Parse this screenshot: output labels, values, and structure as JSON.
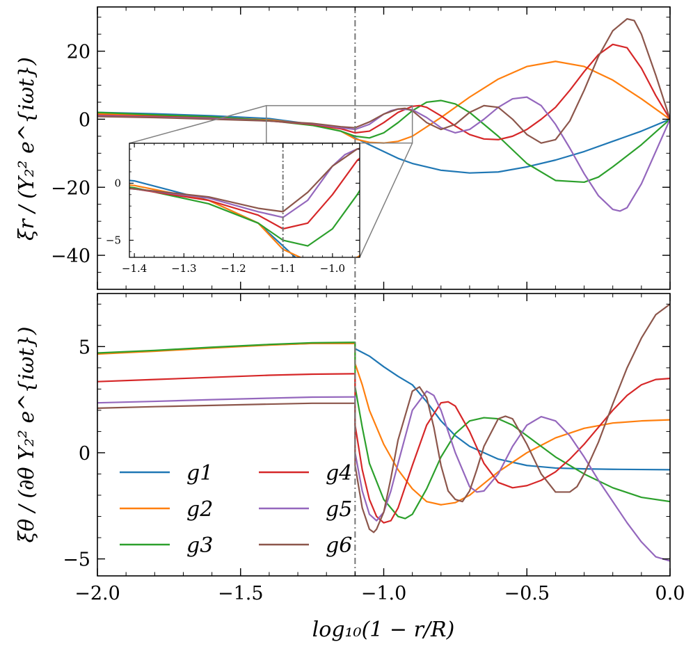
{
  "chart_data": [
    {
      "type": "line",
      "panel": "top",
      "ylabel": "ξr / (Y₂² e^{iωt})",
      "xlim": [
        -2.0,
        0.0
      ],
      "ylim": [
        -50,
        33
      ],
      "yticks": [
        20,
        0,
        -20,
        -40
      ],
      "ytick_labels": [
        "20",
        "0",
        "−20",
        "−40"
      ],
      "vline_x": -1.1,
      "series": [
        {
          "name": "g1",
          "x": [
            -2.0,
            -1.8,
            -1.6,
            -1.4,
            -1.25,
            -1.15,
            -1.1,
            -1.05,
            -1.0,
            -0.95,
            -0.9,
            -0.8,
            -0.7,
            -0.6,
            -0.5,
            -0.4,
            -0.3,
            -0.2,
            -0.1,
            0.0
          ],
          "y": [
            2.0,
            1.6,
            1.0,
            0.2,
            -1.5,
            -3.5,
            -5.5,
            -7.5,
            -9.5,
            -11.5,
            -13.0,
            -15.0,
            -15.8,
            -15.5,
            -14.0,
            -12.0,
            -9.5,
            -6.5,
            -3.5,
            0.0
          ]
        },
        {
          "name": "g2",
          "x": [
            -2.0,
            -1.8,
            -1.6,
            -1.4,
            -1.25,
            -1.15,
            -1.1,
            -1.05,
            -1.0,
            -0.95,
            -0.9,
            -0.8,
            -0.7,
            -0.6,
            -0.5,
            -0.4,
            -0.3,
            -0.2,
            -0.1,
            0.0
          ],
          "y": [
            1.6,
            1.2,
            0.6,
            -0.2,
            -1.5,
            -3.5,
            -5.8,
            -6.8,
            -7.0,
            -6.5,
            -5.0,
            0.5,
            6.5,
            11.8,
            15.5,
            17.0,
            15.5,
            11.5,
            6.0,
            0.0
          ]
        },
        {
          "name": "g3",
          "x": [
            -2.0,
            -1.8,
            -1.6,
            -1.4,
            -1.25,
            -1.15,
            -1.1,
            -1.05,
            -1.0,
            -0.95,
            -0.9,
            -0.85,
            -0.8,
            -0.75,
            -0.7,
            -0.6,
            -0.5,
            -0.4,
            -0.3,
            -0.25,
            -0.2,
            -0.1,
            0.0
          ],
          "y": [
            2.0,
            1.3,
            0.7,
            -0.4,
            -1.8,
            -3.5,
            -5.0,
            -5.5,
            -4.0,
            -1.0,
            2.5,
            5.0,
            5.5,
            4.5,
            2.0,
            -5.0,
            -13.0,
            -18.0,
            -18.5,
            -17.0,
            -14.0,
            -7.5,
            0.0
          ]
        },
        {
          "name": "g4",
          "x": [
            -2.0,
            -1.8,
            -1.6,
            -1.4,
            -1.25,
            -1.15,
            -1.1,
            -1.05,
            -1.0,
            -0.95,
            -0.9,
            -0.875,
            -0.85,
            -0.8,
            -0.75,
            -0.7,
            -0.65,
            -0.6,
            -0.55,
            -0.5,
            -0.45,
            -0.4,
            -0.35,
            -0.3,
            -0.25,
            -0.2,
            -0.15,
            -0.1,
            -0.05,
            0.0
          ],
          "y": [
            1.2,
            0.8,
            0.3,
            -0.5,
            -1.5,
            -2.8,
            -4.0,
            -3.5,
            -1.0,
            2.0,
            3.8,
            4.0,
            3.5,
            1.0,
            -2.0,
            -4.5,
            -5.8,
            -6.0,
            -5.0,
            -3.0,
            0.0,
            3.5,
            8.5,
            14.0,
            19.0,
            22.0,
            21.0,
            15.0,
            7.0,
            0.0
          ]
        },
        {
          "name": "g5",
          "x": [
            -2.0,
            -1.8,
            -1.6,
            -1.4,
            -1.25,
            -1.15,
            -1.1,
            -1.05,
            -1.0,
            -0.975,
            -0.95,
            -0.9,
            -0.85,
            -0.8,
            -0.75,
            -0.7,
            -0.65,
            -0.6,
            -0.55,
            -0.5,
            -0.45,
            -0.4,
            -0.35,
            -0.3,
            -0.25,
            -0.2,
            -0.175,
            -0.15,
            -0.1,
            -0.05,
            0.0
          ],
          "y": [
            1.0,
            0.6,
            0.2,
            -0.5,
            -1.3,
            -2.5,
            -3.0,
            -1.5,
            1.5,
            2.5,
            3.0,
            2.8,
            0.5,
            -2.5,
            -4.0,
            -3.0,
            0.0,
            3.5,
            6.0,
            6.5,
            4.0,
            -1.5,
            -8.5,
            -16.0,
            -22.5,
            -26.5,
            -27.0,
            -26.0,
            -19.0,
            -9.5,
            0.0
          ]
        },
        {
          "name": "g6",
          "x": [
            -2.0,
            -1.8,
            -1.6,
            -1.4,
            -1.25,
            -1.15,
            -1.1,
            -1.05,
            -1.0,
            -0.95,
            -0.925,
            -0.9,
            -0.85,
            -0.8,
            -0.75,
            -0.7,
            -0.65,
            -0.6,
            -0.55,
            -0.5,
            -0.45,
            -0.4,
            -0.35,
            -0.3,
            -0.25,
            -0.2,
            -0.15,
            -0.125,
            -0.1,
            -0.05,
            0.0
          ],
          "y": [
            0.8,
            0.5,
            0.0,
            -0.5,
            -1.2,
            -2.2,
            -2.5,
            -0.8,
            1.5,
            3.0,
            3.2,
            2.5,
            -1.0,
            -3.0,
            -1.5,
            2.0,
            4.0,
            3.5,
            0.0,
            -4.5,
            -7.0,
            -6.0,
            -0.5,
            8.5,
            18.5,
            26.0,
            29.5,
            29.0,
            25.0,
            13.0,
            0.0
          ]
        }
      ],
      "inset": {
        "xlim": [
          -1.41,
          -0.945
        ],
        "ylim": [
          -6.5,
          3.5
        ],
        "xticks": [
          -1.4,
          -1.3,
          -1.2,
          -1.1,
          -1.0
        ],
        "xtick_labels": [
          "−1.4",
          "−1.3",
          "−1.2",
          "−1.1",
          "−1.0"
        ],
        "yticks": [
          0,
          -5
        ],
        "ytick_labels": [
          "0",
          "−5"
        ],
        "zoom_region": {
          "x": [
            -1.41,
            -0.9
          ],
          "y": [
            -7,
            4
          ]
        }
      }
    },
    {
      "type": "line",
      "panel": "bottom",
      "xlabel": "log₁₀(1 − r/R)",
      "ylabel": "ξθ / (∂θ Y₂² e^{iωt})",
      "xlim": [
        -2.0,
        0.0
      ],
      "ylim": [
        -5.8,
        7.5
      ],
      "xticks": [
        -2.0,
        -1.5,
        -1.0,
        -0.5,
        0.0
      ],
      "xtick_labels": [
        "−2.0",
        "−1.5",
        "−1.0",
        "−0.5",
        "0.0"
      ],
      "yticks": [
        5,
        0,
        -5
      ],
      "ytick_labels": [
        "5",
        "0",
        "−5"
      ],
      "vline_x": -1.1,
      "legend": {
        "placement": "lower-left",
        "ncol": 2
      },
      "series": [
        {
          "name": "g1",
          "label": "g1",
          "color": "#1f77b4",
          "x": [
            -2.0,
            -1.8,
            -1.6,
            -1.4,
            -1.25,
            -1.1,
            -1.1,
            -1.05,
            -1.0,
            -0.95,
            -0.9,
            -0.85,
            -0.8,
            -0.75,
            -0.7,
            -0.6,
            -0.5,
            -0.4,
            -0.3,
            -0.2,
            -0.1,
            0.0
          ],
          "y": [
            4.68,
            4.8,
            4.95,
            5.08,
            5.15,
            5.15,
            4.9,
            4.55,
            4.05,
            3.6,
            3.2,
            2.4,
            1.5,
            0.8,
            0.3,
            -0.3,
            -0.6,
            -0.72,
            -0.76,
            -0.78,
            -0.79,
            -0.8
          ]
        },
        {
          "name": "g2",
          "label": "g2",
          "color": "#ff7f0e",
          "x": [
            -2.0,
            -1.8,
            -1.6,
            -1.4,
            -1.25,
            -1.1,
            -1.1,
            -1.075,
            -1.05,
            -1.0,
            -0.95,
            -0.9,
            -0.85,
            -0.8,
            -0.75,
            -0.7,
            -0.6,
            -0.5,
            -0.4,
            -0.3,
            -0.2,
            -0.1,
            0.0
          ],
          "y": [
            4.65,
            4.78,
            4.93,
            5.07,
            5.15,
            5.15,
            4.2,
            3.2,
            2.0,
            0.4,
            -0.8,
            -1.7,
            -2.3,
            -2.45,
            -2.35,
            -2.0,
            -0.9,
            0.0,
            0.7,
            1.15,
            1.4,
            1.5,
            1.55
          ]
        },
        {
          "name": "g3",
          "label": "g3",
          "color": "#2ca02c",
          "x": [
            -2.0,
            -1.8,
            -1.6,
            -1.4,
            -1.25,
            -1.1,
            -1.1,
            -1.075,
            -1.05,
            -1.0,
            -0.95,
            -0.925,
            -0.9,
            -0.85,
            -0.8,
            -0.75,
            -0.7,
            -0.65,
            -0.6,
            -0.55,
            -0.5,
            -0.45,
            -0.4,
            -0.3,
            -0.2,
            -0.1,
            0.0
          ],
          "y": [
            4.7,
            4.82,
            4.97,
            5.1,
            5.18,
            5.2,
            3.1,
            1.2,
            -0.5,
            -2.2,
            -3.0,
            -3.1,
            -2.9,
            -1.7,
            -0.2,
            0.9,
            1.5,
            1.65,
            1.6,
            1.3,
            0.8,
            0.3,
            -0.2,
            -1.0,
            -1.65,
            -2.1,
            -2.3
          ]
        },
        {
          "name": "g4",
          "label": "g4",
          "color": "#d62728",
          "x": [
            -2.0,
            -1.8,
            -1.6,
            -1.4,
            -1.25,
            -1.1,
            -1.1,
            -1.075,
            -1.05,
            -1.025,
            -1.0,
            -0.975,
            -0.95,
            -0.9,
            -0.85,
            -0.8,
            -0.775,
            -0.75,
            -0.7,
            -0.65,
            -0.6,
            -0.55,
            -0.5,
            -0.45,
            -0.4,
            -0.35,
            -0.3,
            -0.25,
            -0.2,
            -0.15,
            -0.1,
            -0.05,
            0.0
          ],
          "y": [
            3.35,
            3.45,
            3.55,
            3.65,
            3.7,
            3.72,
            1.3,
            -0.8,
            -2.2,
            -3.0,
            -3.3,
            -3.2,
            -2.6,
            -0.6,
            1.3,
            2.35,
            2.4,
            2.2,
            1.0,
            -0.5,
            -1.4,
            -1.65,
            -1.55,
            -1.3,
            -0.9,
            -0.3,
            0.4,
            1.2,
            2.0,
            2.7,
            3.2,
            3.45,
            3.5
          ]
        },
        {
          "name": "g5",
          "label": "g5",
          "color": "#9467bd",
          "x": [
            -2.0,
            -1.8,
            -1.6,
            -1.4,
            -1.25,
            -1.1,
            -1.1,
            -1.075,
            -1.05,
            -1.025,
            -1.0,
            -0.975,
            -0.95,
            -0.9,
            -0.85,
            -0.825,
            -0.8,
            -0.75,
            -0.7,
            -0.675,
            -0.65,
            -0.6,
            -0.55,
            -0.5,
            -0.45,
            -0.4,
            -0.35,
            -0.3,
            -0.25,
            -0.2,
            -0.15,
            -0.1,
            -0.05,
            0.0
          ],
          "y": [
            2.35,
            2.42,
            2.5,
            2.57,
            2.62,
            2.63,
            0.0,
            -1.8,
            -2.9,
            -3.2,
            -2.8,
            -1.8,
            -0.5,
            2.0,
            2.9,
            2.7,
            2.0,
            0.0,
            -1.6,
            -1.85,
            -1.8,
            -1.0,
            0.3,
            1.3,
            1.7,
            1.5,
            0.8,
            -0.2,
            -1.3,
            -2.3,
            -3.3,
            -4.2,
            -4.9,
            -5.1
          ]
        },
        {
          "name": "g6",
          "label": "g6",
          "color": "#8c564b",
          "x": [
            -2.0,
            -1.8,
            -1.6,
            -1.4,
            -1.25,
            -1.1,
            -1.1,
            -1.075,
            -1.05,
            -1.035,
            -1.025,
            -1.0,
            -0.975,
            -0.95,
            -0.9,
            -0.875,
            -0.85,
            -0.825,
            -0.8,
            -0.775,
            -0.75,
            -0.725,
            -0.7,
            -0.675,
            -0.65,
            -0.6,
            -0.575,
            -0.55,
            -0.5,
            -0.45,
            -0.4,
            -0.35,
            -0.325,
            -0.3,
            -0.25,
            -0.2,
            -0.15,
            -0.1,
            -0.05,
            0.0
          ],
          "y": [
            2.1,
            2.17,
            2.23,
            2.29,
            2.33,
            2.33,
            -0.6,
            -2.6,
            -3.6,
            -3.75,
            -3.6,
            -2.8,
            -1.2,
            0.6,
            2.9,
            3.1,
            2.6,
            1.2,
            -0.6,
            -1.8,
            -2.2,
            -2.3,
            -1.8,
            -0.8,
            0.3,
            1.6,
            1.72,
            1.6,
            0.4,
            -1.0,
            -1.85,
            -1.85,
            -1.6,
            -1.0,
            0.5,
            2.3,
            4.0,
            5.4,
            6.5,
            7.0
          ]
        }
      ]
    }
  ]
}
